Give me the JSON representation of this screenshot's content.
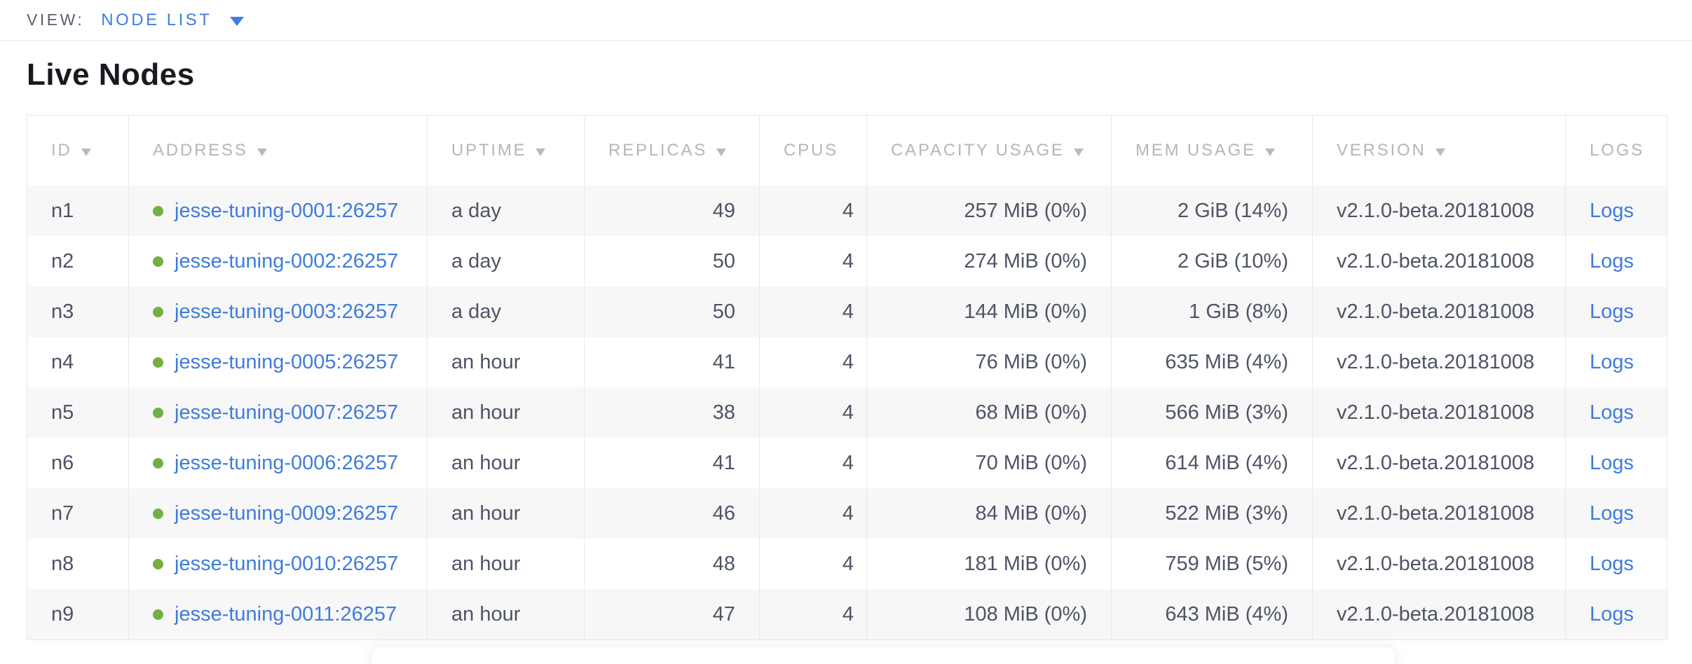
{
  "view_bar": {
    "label": "VIEW:",
    "selected": "NODE LIST"
  },
  "section": {
    "title": "Live Nodes"
  },
  "colors": {
    "link_blue": "#3e7cdd",
    "accent_blue": "#3f7ee0",
    "live_status_green": "#72b043",
    "header_gray": "#b3b6bb",
    "body_text": "#4d5466",
    "row_stripe": "#f7f7f7"
  },
  "table": {
    "columns": [
      {
        "key": "id",
        "label": "ID",
        "sortable": true,
        "align": "left"
      },
      {
        "key": "address",
        "label": "ADDRESS",
        "sortable": true,
        "align": "left"
      },
      {
        "key": "uptime",
        "label": "UPTIME",
        "sortable": true,
        "align": "left"
      },
      {
        "key": "replicas",
        "label": "REPLICAS",
        "sortable": true,
        "align": "right"
      },
      {
        "key": "cpus",
        "label": "CPUS",
        "sortable": false,
        "align": "right"
      },
      {
        "key": "capacity",
        "label": "CAPACITY USAGE",
        "sortable": true,
        "align": "right"
      },
      {
        "key": "mem",
        "label": "MEM USAGE",
        "sortable": true,
        "align": "right"
      },
      {
        "key": "version",
        "label": "VERSION",
        "sortable": true,
        "align": "left"
      },
      {
        "key": "logs",
        "label": "LOGS",
        "sortable": false,
        "align": "left"
      }
    ],
    "rows": [
      {
        "id": "n1",
        "status": "live",
        "address": "jesse-tuning-0001:26257",
        "uptime": "a day",
        "replicas": "49",
        "cpus": "4",
        "capacity": "257 MiB (0%)",
        "mem": "2 GiB (14%)",
        "version": "v2.1.0-beta.20181008",
        "logs_label": "Logs"
      },
      {
        "id": "n2",
        "status": "live",
        "address": "jesse-tuning-0002:26257",
        "uptime": "a day",
        "replicas": "50",
        "cpus": "4",
        "capacity": "274 MiB (0%)",
        "mem": "2 GiB (10%)",
        "version": "v2.1.0-beta.20181008",
        "logs_label": "Logs"
      },
      {
        "id": "n3",
        "status": "live",
        "address": "jesse-tuning-0003:26257",
        "uptime": "a day",
        "replicas": "50",
        "cpus": "4",
        "capacity": "144 MiB (0%)",
        "mem": "1 GiB (8%)",
        "version": "v2.1.0-beta.20181008",
        "logs_label": "Logs"
      },
      {
        "id": "n4",
        "status": "live",
        "address": "jesse-tuning-0005:26257",
        "uptime": "an hour",
        "replicas": "41",
        "cpus": "4",
        "capacity": "76 MiB (0%)",
        "mem": "635 MiB (4%)",
        "version": "v2.1.0-beta.20181008",
        "logs_label": "Logs"
      },
      {
        "id": "n5",
        "status": "live",
        "address": "jesse-tuning-0007:26257",
        "uptime": "an hour",
        "replicas": "38",
        "cpus": "4",
        "capacity": "68 MiB (0%)",
        "mem": "566 MiB (3%)",
        "version": "v2.1.0-beta.20181008",
        "logs_label": "Logs"
      },
      {
        "id": "n6",
        "status": "live",
        "address": "jesse-tuning-0006:26257",
        "uptime": "an hour",
        "replicas": "41",
        "cpus": "4",
        "capacity": "70 MiB (0%)",
        "mem": "614 MiB (4%)",
        "version": "v2.1.0-beta.20181008",
        "logs_label": "Logs"
      },
      {
        "id": "n7",
        "status": "live",
        "address": "jesse-tuning-0009:26257",
        "uptime": "an hour",
        "replicas": "46",
        "cpus": "4",
        "capacity": "84 MiB (0%)",
        "mem": "522 MiB (3%)",
        "version": "v2.1.0-beta.20181008",
        "logs_label": "Logs"
      },
      {
        "id": "n8",
        "status": "live",
        "address": "jesse-tuning-0010:26257",
        "uptime": "an hour",
        "replicas": "48",
        "cpus": "4",
        "capacity": "181 MiB (0%)",
        "mem": "759 MiB (5%)",
        "version": "v2.1.0-beta.20181008",
        "logs_label": "Logs"
      },
      {
        "id": "n9",
        "status": "live",
        "address": "jesse-tuning-0011:26257",
        "uptime": "an hour",
        "replicas": "47",
        "cpus": "4",
        "capacity": "108 MiB (0%)",
        "mem": "643 MiB (4%)",
        "version": "v2.1.0-beta.20181008",
        "logs_label": "Logs"
      }
    ]
  }
}
